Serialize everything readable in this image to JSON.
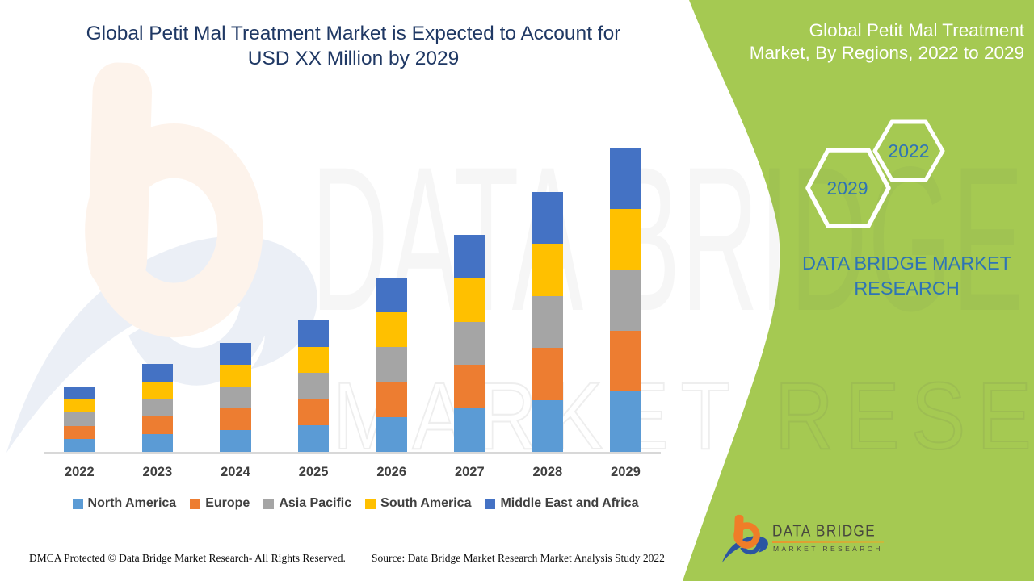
{
  "title": {
    "line1": "Global Petit Mal Treatment Market is Expected to Account for",
    "line2": "USD XX Million by 2029"
  },
  "panel": {
    "title_line1": "Global Petit Mal Treatment",
    "title_line2": "Market, By Regions, 2022 to 2029",
    "hexagons": [
      {
        "label": "2029"
      },
      {
        "label": "2022"
      }
    ],
    "brand_line1": "DATA BRIDGE MARKET",
    "brand_line2": "RESEARCH",
    "bg_color": "#A5C952",
    "text_color": "#FFFFFF",
    "accent_text_color": "#2E74B5"
  },
  "chart_data": {
    "type": "bar",
    "stacked": true,
    "title": "Global Petit Mal Treatment Market is Expected to Account for USD XX Million by 2029",
    "xlabel": "",
    "ylabel": "",
    "y_axis_visible": false,
    "grid": false,
    "legend_position": "bottom",
    "categories": [
      "2022",
      "2023",
      "2024",
      "2025",
      "2026",
      "2027",
      "2028",
      "2029"
    ],
    "series": [
      {
        "name": "North America",
        "color": "#5B9BD5",
        "values": [
          16.2,
          21.8,
          27.0,
          32.6,
          43.2,
          53.8,
          64.4,
          75.2
        ]
      },
      {
        "name": "Europe",
        "color": "#ED7D31",
        "values": [
          16.2,
          21.8,
          27.0,
          32.6,
          43.2,
          53.8,
          64.4,
          75.2
        ]
      },
      {
        "name": "Asia Pacific",
        "color": "#A5A5A5",
        "values": [
          16.2,
          21.8,
          27.0,
          32.6,
          43.2,
          53.8,
          64.4,
          75.2
        ]
      },
      {
        "name": "South America",
        "color": "#FFC000",
        "values": [
          16.2,
          21.8,
          27.0,
          32.6,
          43.2,
          53.8,
          64.4,
          75.2
        ]
      },
      {
        "name": "Middle East and Africa",
        "color": "#4472C4",
        "values": [
          16.2,
          21.8,
          27.0,
          32.6,
          43.2,
          53.8,
          64.4,
          75.2
        ]
      }
    ],
    "stack_totals": [
      81,
      109,
      135,
      163,
      216,
      269,
      322,
      376
    ],
    "note": "No y-axis or data labels are shown in the source; actual market values are masked as 'USD XX Million'. Values above are relative height estimates (pixels), with each year's stack split equally among the five regions."
  },
  "footer": {
    "left": "DMCA Protected © Data Bridge Market Research- All Rights Reserved.",
    "right": "Source: Data Bridge Market Research Market Analysis Study 2022"
  },
  "logo": {
    "name": "DATA BRIDGE",
    "sub": "MARKET RESEARCH",
    "orange": "#F07D28",
    "blue": "#2B55A2"
  },
  "watermark": {
    "line1": "DATA BRIDGE",
    "line2": "MARKET RESEARCH"
  },
  "colors": {
    "title_text": "#1F3864",
    "axis_line": "#D8D8D8",
    "axis_label": "#3F3F3F",
    "legend_text": "#404040"
  }
}
